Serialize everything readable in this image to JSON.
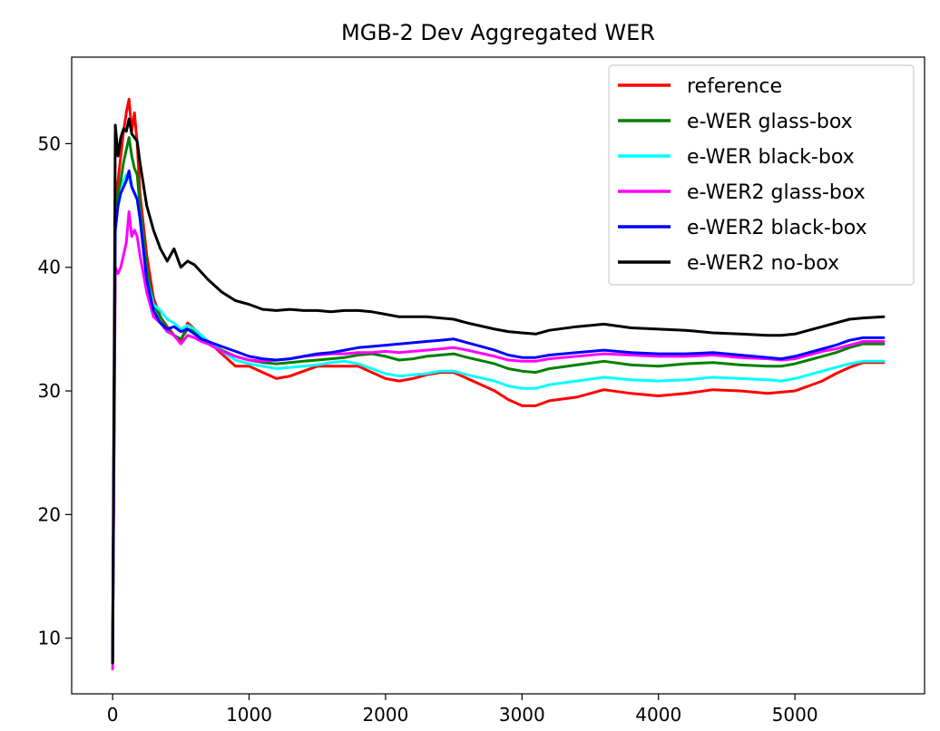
{
  "chart_data": {
    "type": "line",
    "title": "MGB-2 Dev Aggregated WER",
    "xlabel": "",
    "ylabel": "",
    "xlim": [
      -300,
      5950
    ],
    "ylim": [
      5.5,
      57
    ],
    "xticks": [
      0,
      1000,
      2000,
      3000,
      4000,
      5000
    ],
    "yticks": [
      10,
      20,
      30,
      40,
      50
    ],
    "grid": false,
    "legend_position": "top-right",
    "series": [
      {
        "name": "reference",
        "color": "#ff0000",
        "x": [
          0,
          20,
          40,
          60,
          80,
          100,
          120,
          140,
          160,
          180,
          200,
          250,
          300,
          350,
          400,
          450,
          500,
          550,
          600,
          650,
          700,
          800,
          900,
          1000,
          1100,
          1200,
          1300,
          1400,
          1500,
          1600,
          1700,
          1800,
          1900,
          2000,
          2100,
          2200,
          2300,
          2400,
          2500,
          2600,
          2800,
          2900,
          3000,
          3100,
          3200,
          3400,
          3600,
          3800,
          4000,
          4200,
          4400,
          4600,
          4800,
          4900,
          5000,
          5100,
          5200,
          5300,
          5400,
          5500,
          5650
        ],
        "y": [
          8,
          46,
          47,
          49,
          51,
          52.5,
          53.6,
          51,
          52.5,
          50,
          46,
          41,
          37.5,
          36,
          35.2,
          34.5,
          34,
          35.5,
          35,
          34.5,
          34,
          33,
          32,
          32,
          31.5,
          31,
          31.2,
          31.6,
          32,
          32,
          32,
          32,
          31.5,
          31,
          30.8,
          31,
          31.3,
          31.5,
          31.5,
          31,
          30,
          29.3,
          28.8,
          28.8,
          29.2,
          29.5,
          30.1,
          29.8,
          29.6,
          29.8,
          30.1,
          30,
          29.8,
          29.9,
          30,
          30.4,
          30.8,
          31.4,
          31.9,
          32.3,
          32.3
        ]
      },
      {
        "name": "e-WER glass-box",
        "color": "#008000",
        "x": [
          0,
          20,
          40,
          60,
          80,
          100,
          120,
          140,
          160,
          180,
          200,
          250,
          300,
          350,
          400,
          450,
          500,
          550,
          600,
          650,
          700,
          800,
          900,
          1000,
          1100,
          1200,
          1300,
          1400,
          1500,
          1600,
          1700,
          1800,
          1900,
          2000,
          2100,
          2200,
          2300,
          2400,
          2500,
          2600,
          2800,
          2900,
          3000,
          3100,
          3200,
          3400,
          3600,
          3800,
          4000,
          4200,
          4400,
          4600,
          4800,
          4900,
          5000,
          5100,
          5200,
          5300,
          5400,
          5500,
          5650
        ],
        "y": [
          8,
          44,
          46,
          47,
          48.5,
          49.5,
          50.5,
          49,
          48,
          47.5,
          45,
          40,
          37,
          36,
          35,
          34.5,
          34.2,
          35,
          34.8,
          34.3,
          34,
          33.3,
          32.8,
          32.5,
          32.3,
          32.2,
          32.3,
          32.4,
          32.5,
          32.6,
          32.7,
          32.9,
          33,
          32.8,
          32.5,
          32.6,
          32.8,
          32.9,
          33,
          32.7,
          32.2,
          31.8,
          31.6,
          31.5,
          31.8,
          32.1,
          32.4,
          32.1,
          32,
          32.2,
          32.3,
          32.1,
          32,
          32,
          32.2,
          32.5,
          32.8,
          33.1,
          33.5,
          33.8,
          33.8
        ]
      },
      {
        "name": "e-WER black-box",
        "color": "#00ffff",
        "x": [
          0,
          20,
          40,
          60,
          80,
          100,
          120,
          140,
          160,
          180,
          200,
          250,
          300,
          350,
          400,
          450,
          500,
          550,
          600,
          650,
          700,
          800,
          900,
          1000,
          1100,
          1200,
          1300,
          1400,
          1500,
          1600,
          1700,
          1800,
          1900,
          2000,
          2100,
          2200,
          2300,
          2400,
          2500,
          2600,
          2800,
          2900,
          3000,
          3100,
          3200,
          3400,
          3600,
          3800,
          4000,
          4200,
          4400,
          4600,
          4800,
          4900,
          5000,
          5100,
          5200,
          5300,
          5400,
          5500,
          5650
        ],
        "y": [
          8,
          44,
          45,
          46,
          47,
          47.5,
          47.2,
          46.5,
          46,
          45.5,
          44,
          39,
          37,
          36.5,
          35.8,
          35.5,
          35,
          35.3,
          35,
          34.5,
          34,
          33.2,
          32.5,
          32.2,
          32,
          31.8,
          31.9,
          32,
          32.1,
          32.3,
          32.4,
          32.2,
          31.8,
          31.4,
          31.2,
          31.3,
          31.4,
          31.6,
          31.6,
          31.3,
          30.8,
          30.4,
          30.2,
          30.2,
          30.5,
          30.8,
          31.1,
          30.9,
          30.8,
          30.9,
          31.1,
          31,
          30.9,
          30.8,
          31,
          31.3,
          31.6,
          31.9,
          32.2,
          32.4,
          32.4
        ]
      },
      {
        "name": "e-WER2 glass-box",
        "color": "#ff00ff",
        "x": [
          0,
          20,
          40,
          60,
          80,
          100,
          120,
          140,
          160,
          180,
          200,
          250,
          300,
          350,
          400,
          450,
          500,
          550,
          600,
          650,
          700,
          800,
          900,
          1000,
          1100,
          1200,
          1300,
          1400,
          1500,
          1600,
          1700,
          1800,
          1900,
          2000,
          2100,
          2200,
          2300,
          2400,
          2500,
          2600,
          2800,
          2900,
          3000,
          3100,
          3200,
          3400,
          3600,
          3800,
          4000,
          4200,
          4400,
          4600,
          4800,
          4900,
          5000,
          5100,
          5200,
          5300,
          5400,
          5500,
          5650
        ],
        "y": [
          7.5,
          40,
          39.5,
          40,
          41,
          42,
          44.5,
          42.5,
          43,
          42.5,
          41,
          38,
          36,
          35.5,
          34.8,
          34.5,
          33.8,
          34.5,
          34.3,
          34,
          33.8,
          33.2,
          32.8,
          32.5,
          32.4,
          32.5,
          32.6,
          32.8,
          32.9,
          33,
          33,
          33.1,
          33.1,
          33.2,
          33.1,
          33.2,
          33.3,
          33.4,
          33.5,
          33.3,
          32.8,
          32.5,
          32.4,
          32.4,
          32.6,
          32.8,
          33,
          32.9,
          32.8,
          32.8,
          32.9,
          32.7,
          32.6,
          32.5,
          32.6,
          32.9,
          33.2,
          33.4,
          33.7,
          34,
          34
        ]
      },
      {
        "name": "e-WER2 black-box",
        "color": "#0000ff",
        "x": [
          0,
          20,
          40,
          60,
          80,
          100,
          120,
          140,
          160,
          180,
          200,
          250,
          300,
          350,
          400,
          450,
          500,
          550,
          600,
          650,
          700,
          800,
          900,
          1000,
          1100,
          1200,
          1300,
          1400,
          1500,
          1600,
          1700,
          1800,
          1900,
          2000,
          2100,
          2200,
          2300,
          2400,
          2500,
          2600,
          2800,
          2900,
          3000,
          3100,
          3200,
          3400,
          3600,
          3800,
          4000,
          4200,
          4400,
          4600,
          4800,
          4900,
          5000,
          5100,
          5200,
          5300,
          5400,
          5500,
          5650
        ],
        "y": [
          8,
          43,
          45,
          46,
          46.5,
          47,
          47.8,
          46.5,
          46,
          45.5,
          44,
          39,
          36.5,
          35.5,
          35,
          35.2,
          34.8,
          35,
          34.6,
          34.2,
          34,
          33.6,
          33.2,
          32.8,
          32.6,
          32.5,
          32.6,
          32.8,
          33,
          33.1,
          33.3,
          33.5,
          33.6,
          33.7,
          33.8,
          33.9,
          34,
          34.1,
          34.2,
          33.9,
          33.3,
          32.9,
          32.7,
          32.7,
          32.9,
          33.1,
          33.3,
          33.1,
          33,
          33,
          33.1,
          32.9,
          32.7,
          32.6,
          32.8,
          33.1,
          33.4,
          33.7,
          34.1,
          34.3,
          34.3
        ]
      },
      {
        "name": "e-WER2 no-box",
        "color": "#000000",
        "x": [
          0,
          20,
          40,
          60,
          80,
          100,
          120,
          140,
          160,
          180,
          200,
          250,
          300,
          350,
          400,
          450,
          500,
          550,
          600,
          650,
          700,
          800,
          900,
          1000,
          1100,
          1200,
          1300,
          1400,
          1500,
          1600,
          1700,
          1800,
          1900,
          2000,
          2100,
          2200,
          2300,
          2400,
          2500,
          2600,
          2800,
          2900,
          3000,
          3100,
          3200,
          3400,
          3600,
          3800,
          4000,
          4200,
          4400,
          4600,
          4800,
          4900,
          5000,
          5100,
          5200,
          5300,
          5400,
          5500,
          5650
        ],
        "y": [
          8,
          51.5,
          49,
          50.5,
          51.2,
          51,
          52,
          50.8,
          50.5,
          50.2,
          48.5,
          45,
          43,
          41.5,
          40.5,
          41.5,
          40,
          40.5,
          40.2,
          39.6,
          39,
          38,
          37.3,
          37,
          36.6,
          36.5,
          36.6,
          36.5,
          36.5,
          36.4,
          36.5,
          36.5,
          36.4,
          36.2,
          36,
          36,
          36,
          35.9,
          35.8,
          35.5,
          35,
          34.8,
          34.7,
          34.6,
          34.9,
          35.2,
          35.4,
          35.1,
          35,
          34.9,
          34.7,
          34.6,
          34.5,
          34.5,
          34.6,
          34.9,
          35.2,
          35.5,
          35.8,
          35.9,
          36
        ]
      }
    ]
  }
}
